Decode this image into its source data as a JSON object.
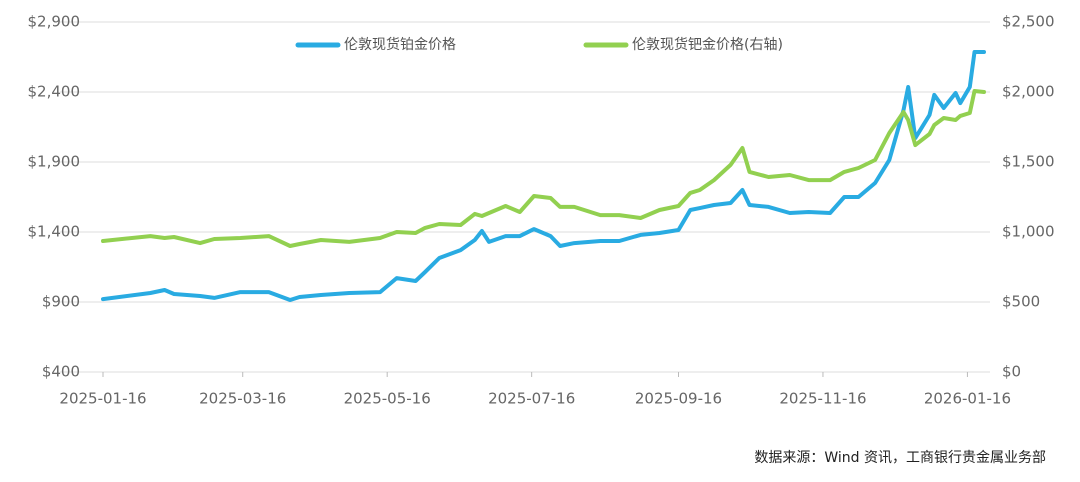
{
  "chart_data": {
    "type": "line",
    "x": [
      "2025-01-16",
      "2025-02-05",
      "2025-02-11",
      "2025-02-15",
      "2025-02-26",
      "2025-03-04",
      "2025-03-15",
      "2025-03-27",
      "2025-04-05",
      "2025-04-09",
      "2025-04-18",
      "2025-04-30",
      "2025-05-13",
      "2025-05-20",
      "2025-05-28",
      "2025-06-01",
      "2025-06-07",
      "2025-06-16",
      "2025-06-22",
      "2025-06-25",
      "2025-06-28",
      "2025-07-05",
      "2025-07-11",
      "2025-07-17",
      "2025-07-24",
      "2025-07-28",
      "2025-08-03",
      "2025-08-14",
      "2025-08-22",
      "2025-08-31",
      "2025-09-08",
      "2025-09-16",
      "2025-09-21",
      "2025-09-25",
      "2025-10-01",
      "2025-10-08",
      "2025-10-13",
      "2025-10-16",
      "2025-10-24",
      "2025-11-02",
      "2025-11-10",
      "2025-11-19",
      "2025-11-25",
      "2025-12-01",
      "2025-12-08",
      "2025-12-14",
      "2025-12-20",
      "2025-12-22",
      "2025-12-25",
      "2025-12-31",
      "2026-01-02",
      "2026-01-06",
      "2026-01-11",
      "2026-01-13",
      "2026-01-17",
      "2026-01-19",
      "2026-01-23"
    ],
    "series": [
      {
        "name": "伦敦现货铂金价格",
        "color": "#29abe2",
        "axis": "y",
        "values": [
          921,
          964,
          986,
          957,
          943,
          929,
          971,
          971,
          914,
          936,
          950,
          964,
          971,
          1071,
          1050,
          1114,
          1214,
          1271,
          1343,
          1407,
          1329,
          1371,
          1371,
          1421,
          1371,
          1300,
          1321,
          1336,
          1336,
          1379,
          1393,
          1414,
          1557,
          1571,
          1593,
          1607,
          1700,
          1593,
          1579,
          1536,
          1543,
          1536,
          1650,
          1650,
          1750,
          1914,
          2271,
          2436,
          2071,
          2236,
          2379,
          2286,
          2393,
          2321,
          2436,
          2686,
          2686
        ]
      },
      {
        "name": "伦敦现货钯金价格(右轴)",
        "color": "#92d050",
        "axis": "y2",
        "values": [
          936,
          971,
          957,
          964,
          921,
          950,
          957,
          971,
          900,
          914,
          943,
          929,
          957,
          1000,
          993,
          1029,
          1057,
          1050,
          1129,
          1114,
          1136,
          1186,
          1143,
          1257,
          1243,
          1179,
          1179,
          1121,
          1121,
          1100,
          1157,
          1186,
          1279,
          1300,
          1371,
          1479,
          1600,
          1429,
          1393,
          1407,
          1371,
          1371,
          1429,
          1457,
          1514,
          1707,
          1857,
          1800,
          1621,
          1700,
          1764,
          1814,
          1800,
          1829,
          1850,
          2007,
          2000
        ]
      }
    ],
    "xlim": [
      "2025-01-16",
      "2026-01-23"
    ],
    "xticks": [
      "2025-01-16",
      "2025-03-16",
      "2025-05-16",
      "2025-07-16",
      "2025-09-16",
      "2025-11-16",
      "2026-01-16"
    ],
    "ylim": [
      400,
      2900
    ],
    "yticks": [
      {
        "value": 400,
        "label": "$400"
      },
      {
        "value": 900,
        "label": "$900"
      },
      {
        "value": 1400,
        "label": "$1,400"
      },
      {
        "value": 1900,
        "label": "$1,900"
      },
      {
        "value": 2400,
        "label": "$2,400"
      },
      {
        "value": 2900,
        "label": "$2,900"
      }
    ],
    "y2lim": [
      0,
      2500
    ],
    "y2ticks": [
      {
        "value": 0,
        "label": "$0"
      },
      {
        "value": 500,
        "label": "$500"
      },
      {
        "value": 1000,
        "label": "$1,000"
      },
      {
        "value": 1500,
        "label": "$1,500"
      },
      {
        "value": 2000,
        "label": "$2,000"
      },
      {
        "value": 2500,
        "label": "$2,500"
      }
    ],
    "grid": true,
    "source": "数据来源：Wind 资讯，工商银行贵金属业务部"
  }
}
